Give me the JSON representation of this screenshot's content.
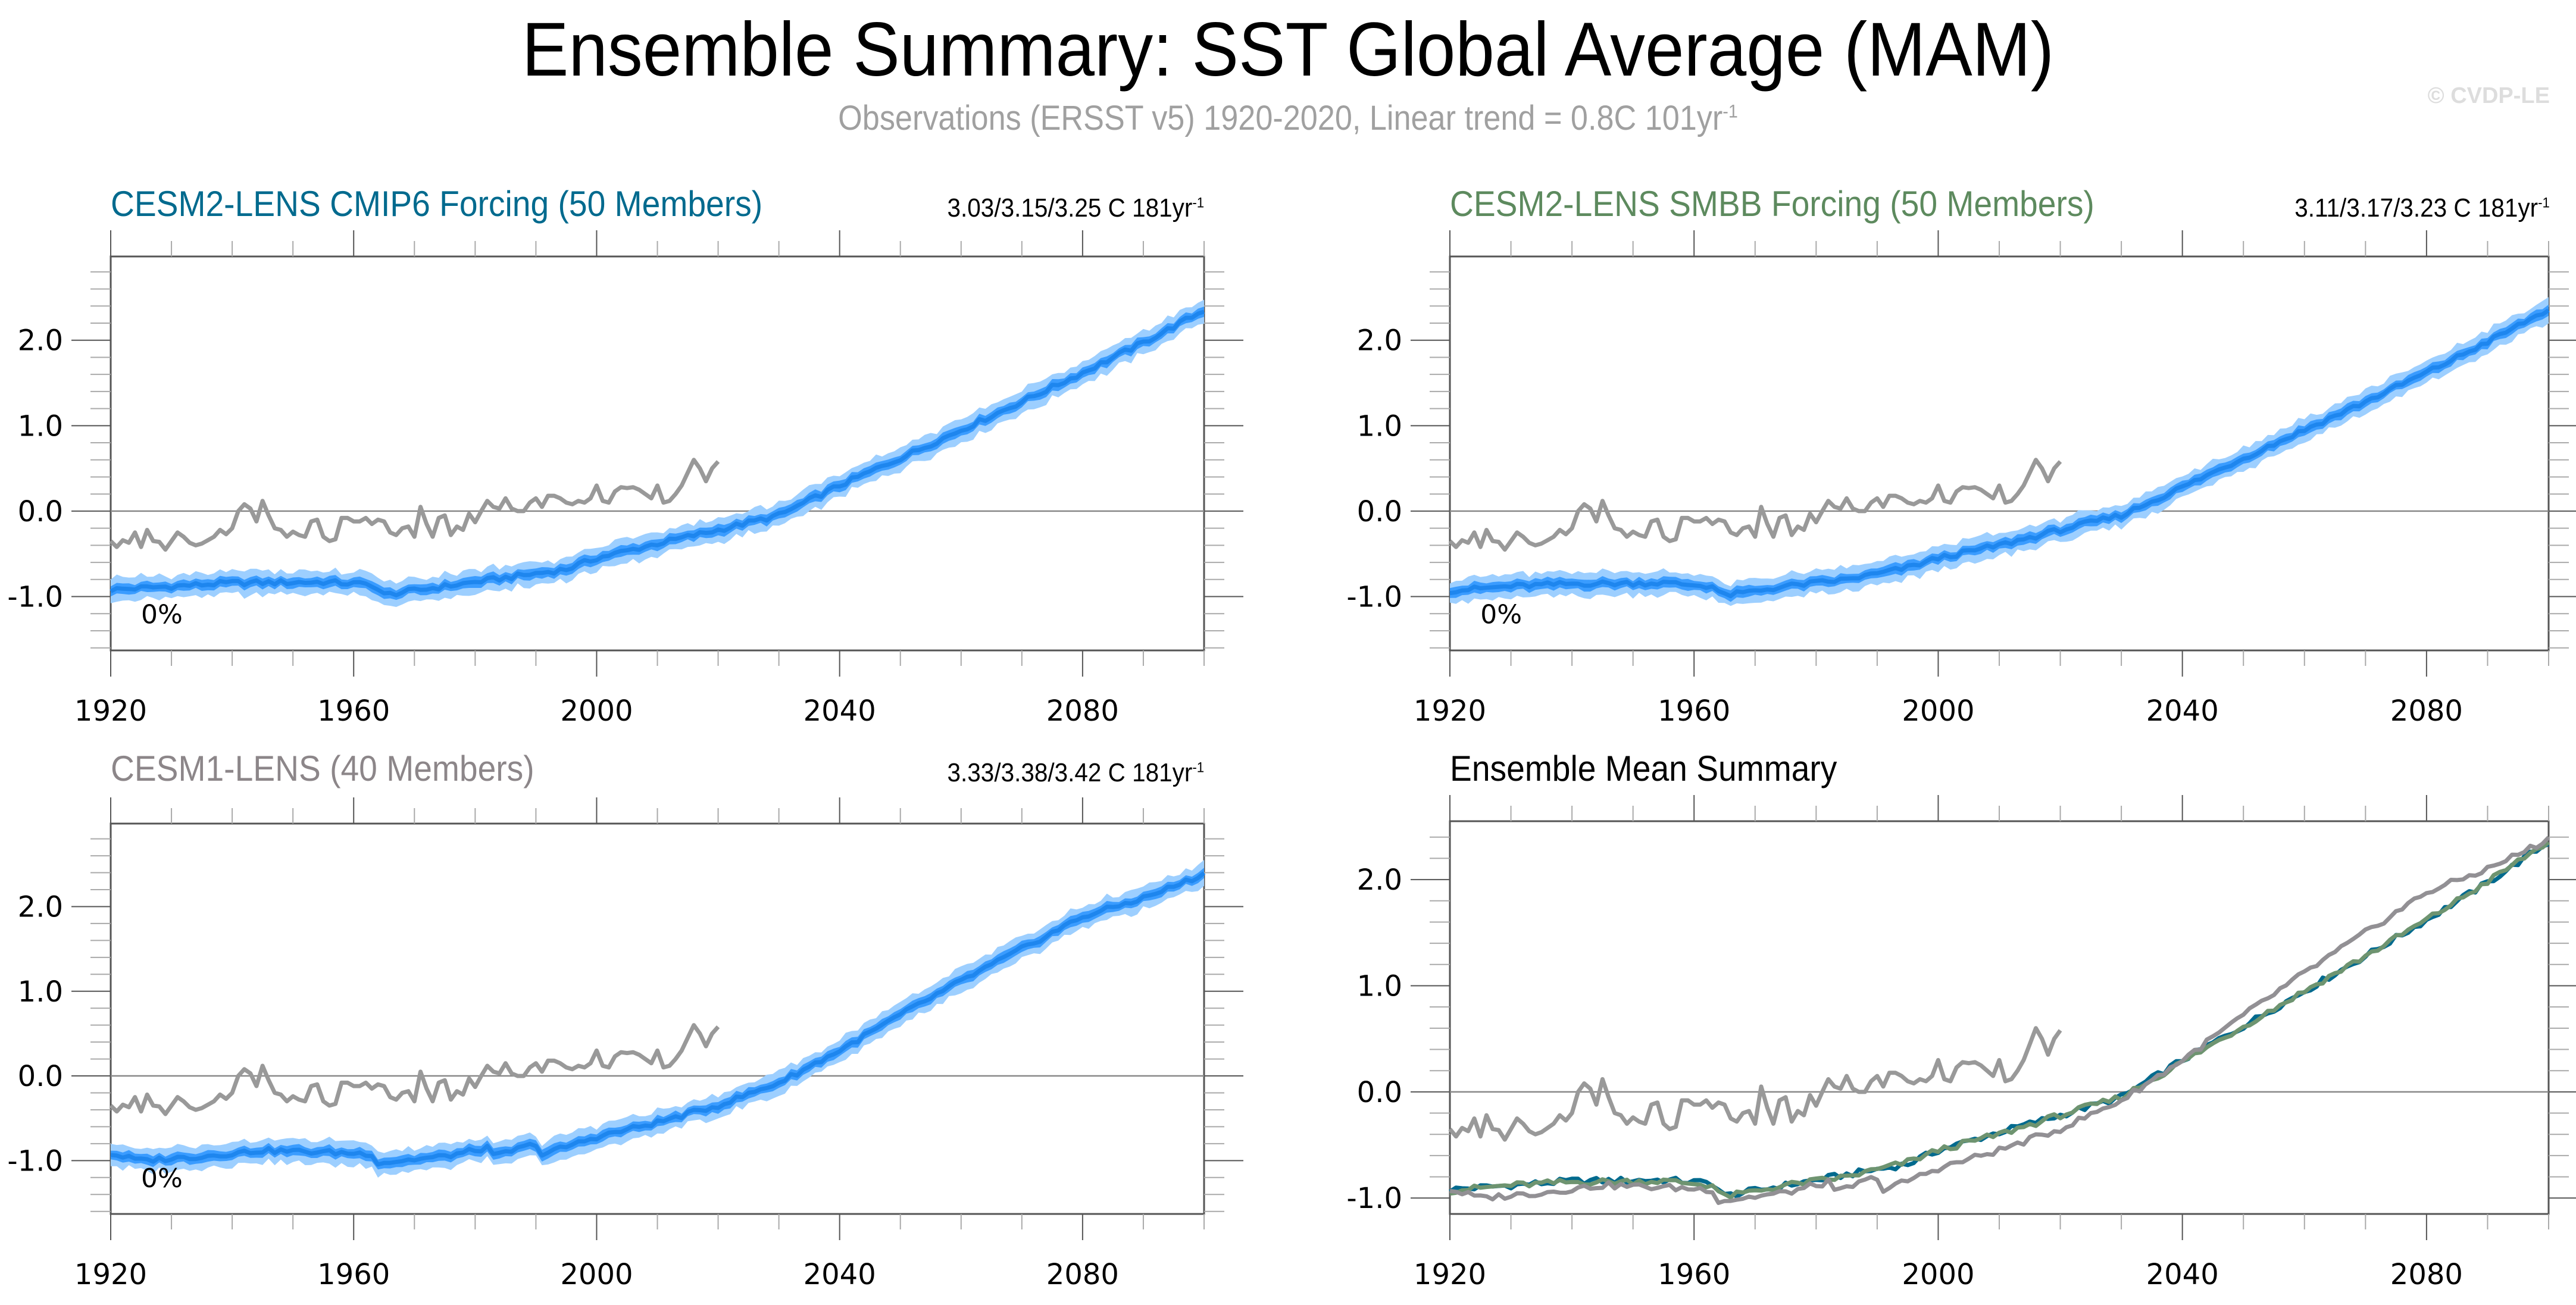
{
  "header": {
    "title": "Ensemble Summary: SST Global Average (MAM)",
    "subtitle": "Observations (ERSST v5) 1920-2020, Linear trend = 0.8C 101yr",
    "subtitle_sup": "-1",
    "copyright": "© CVDP-LE"
  },
  "colors": {
    "cmip6_title": "#006a8e",
    "smbb_title": "#5d8a5e",
    "cesm1_title": "#8c8689",
    "obs_line": "#999999",
    "band_outer": "#9dcfff",
    "band_inner": "#3a9cff",
    "mean_line": "#1e86ee",
    "em_cmip6": "#006a8e",
    "em_smbb": "#6e9470",
    "em_cesm1": "#929094"
  },
  "panels": [
    {
      "title": "CESM2-LENS CMIP6 Forcing (50 Members)",
      "stat": "3.03/3.15/3.25 C 181yr",
      "stat_sup": "-1",
      "pct": "0%"
    },
    {
      "title": "CESM2-LENS SMBB Forcing (50 Members)",
      "stat": "3.11/3.17/3.23 C 181yr",
      "stat_sup": "-1",
      "pct": "0%"
    },
    {
      "title": "CESM1-LENS (40 Members)",
      "stat": "3.33/3.38/3.42 C 181yr",
      "stat_sup": "-1",
      "pct": "0%"
    },
    {
      "title": "Ensemble Mean Summary"
    }
  ],
  "chart_data": [
    {
      "type": "area",
      "title": "CESM2-LENS CMIP6 Forcing (50 Members)",
      "x_range": [
        1920,
        2100
      ],
      "ylim": [
        -1.63,
        2.98
      ],
      "xticks": [
        "1920",
        "1960",
        "2000",
        "2040",
        "2080"
      ],
      "yticks": [
        "-1.0",
        "0.0",
        "1.0",
        "2.0"
      ],
      "zero_line": true,
      "annotation": "0%",
      "series": [
        {
          "name": "Ensemble mean",
          "anchors": [
            [
              1920,
              -0.92
            ],
            [
              1930,
              -0.88
            ],
            [
              1940,
              -0.84
            ],
            [
              1955,
              -0.83
            ],
            [
              1963,
              -0.86
            ],
            [
              1965,
              -0.98
            ],
            [
              1975,
              -0.88
            ],
            [
              1985,
              -0.78
            ],
            [
              1991,
              -0.72
            ],
            [
              1995,
              -0.68
            ],
            [
              2000,
              -0.55
            ],
            [
              2010,
              -0.38
            ],
            [
              2020,
              -0.22
            ],
            [
              2030,
              -0.05
            ],
            [
              2040,
              0.3
            ],
            [
              2050,
              0.62
            ],
            [
              2060,
              0.95
            ],
            [
              2070,
              1.28
            ],
            [
              2080,
              1.62
            ],
            [
              2090,
              1.97
            ],
            [
              2100,
              2.35
            ]
          ]
        },
        {
          "name": "Observations (ERSST v5)",
          "x_start": 1920,
          "values": [
            -0.35,
            -0.42,
            -0.34,
            -0.37,
            -0.25,
            -0.42,
            -0.22,
            -0.35,
            -0.36,
            -0.45,
            -0.35,
            -0.25,
            -0.3,
            -0.37,
            -0.4,
            -0.38,
            -0.34,
            -0.3,
            -0.22,
            -0.27,
            -0.2,
            0.0,
            0.08,
            0.03,
            -0.12,
            0.12,
            -0.05,
            -0.2,
            -0.22,
            -0.3,
            -0.24,
            -0.28,
            -0.3,
            -0.12,
            -0.1,
            -0.3,
            -0.35,
            -0.33,
            -0.08,
            -0.08,
            -0.12,
            -0.12,
            -0.08,
            -0.15,
            -0.1,
            -0.12,
            -0.25,
            -0.28,
            -0.2,
            -0.18,
            -0.3,
            0.05,
            -0.15,
            -0.3,
            -0.08,
            -0.05,
            -0.28,
            -0.18,
            -0.22,
            -0.03,
            -0.13,
            0.0,
            0.12,
            0.05,
            0.03,
            0.15,
            0.03,
            0.0,
            0.0,
            0.1,
            0.15,
            0.05,
            0.18,
            0.18,
            0.15,
            0.1,
            0.08,
            0.12,
            0.1,
            0.15,
            0.3,
            0.12,
            0.1,
            0.23,
            0.28,
            0.27,
            0.28,
            0.25,
            0.2,
            0.15,
            0.3,
            0.1,
            0.12,
            0.2,
            0.3,
            0.45,
            0.6,
            0.5,
            0.35,
            0.5,
            0.58
          ]
        }
      ],
      "bands": [
        "min-max",
        "interquartile"
      ]
    },
    {
      "type": "area",
      "title": "CESM2-LENS SMBB Forcing (50 Members)",
      "x_range": [
        1920,
        2100
      ],
      "ylim": [
        -1.63,
        2.98
      ],
      "xticks": [
        "1920",
        "1960",
        "2000",
        "2040",
        "2080"
      ],
      "yticks": [
        "-1.0",
        "0.0",
        "1.0",
        "2.0"
      ],
      "zero_line": true,
      "annotation": "0%",
      "series": [
        {
          "name": "Ensemble mean",
          "anchors": [
            [
              1920,
              -0.93
            ],
            [
              1930,
              -0.88
            ],
            [
              1940,
              -0.85
            ],
            [
              1955,
              -0.84
            ],
            [
              1963,
              -0.88
            ],
            [
              1965,
              -0.99
            ],
            [
              1975,
              -0.88
            ],
            [
              1985,
              -0.8
            ],
            [
              1991,
              -0.72
            ],
            [
              1995,
              -0.66
            ],
            [
              2000,
              -0.55
            ],
            [
              2010,
              -0.4
            ],
            [
              2020,
              -0.22
            ],
            [
              2030,
              -0.05
            ],
            [
              2040,
              0.28
            ],
            [
              2050,
              0.62
            ],
            [
              2060,
              0.95
            ],
            [
              2070,
              1.28
            ],
            [
              2080,
              1.62
            ],
            [
              2090,
              1.98
            ],
            [
              2100,
              2.36
            ]
          ]
        },
        {
          "name": "Observations (ERSST v5)",
          "x_start": 1920,
          "same_as": "panel 1"
        }
      ],
      "bands": [
        "min-max",
        "interquartile"
      ]
    },
    {
      "type": "area",
      "title": "CESM1-LENS (40 Members)",
      "x_range": [
        1920,
        2100
      ],
      "ylim": [
        -1.63,
        2.98
      ],
      "xticks": [
        "1920",
        "1960",
        "2000",
        "2040",
        "2080"
      ],
      "yticks": [
        "-1.0",
        "0.0",
        "1.0",
        "2.0"
      ],
      "zero_line": true,
      "annotation": "0%",
      "series": [
        {
          "name": "Ensemble mean",
          "anchors": [
            [
              1920,
              -0.92
            ],
            [
              1925,
              -1.0
            ],
            [
              1935,
              -0.95
            ],
            [
              1945,
              -0.88
            ],
            [
              1955,
              -0.9
            ],
            [
              1963,
              -0.92
            ],
            [
              1964,
              -1.03
            ],
            [
              1975,
              -0.95
            ],
            [
              1982,
              -0.85
            ],
            [
              1983,
              -0.95
            ],
            [
              1990,
              -0.8
            ],
            [
              1991,
              -0.93
            ],
            [
              2000,
              -0.72
            ],
            [
              2010,
              -0.55
            ],
            [
              2020,
              -0.35
            ],
            [
              2030,
              -0.08
            ],
            [
              2040,
              0.3
            ],
            [
              2050,
              0.72
            ],
            [
              2060,
              1.12
            ],
            [
              2070,
              1.5
            ],
            [
              2080,
              1.88
            ],
            [
              2090,
              2.1
            ],
            [
              2100,
              2.38
            ]
          ]
        },
        {
          "name": "Observations (ERSST v5)",
          "x_start": 1920,
          "same_as": "panel 1"
        }
      ],
      "bands": [
        "min-max",
        "interquartile"
      ]
    },
    {
      "type": "line",
      "title": "Ensemble Mean Summary",
      "x_range": [
        1920,
        2100
      ],
      "ylim": [
        -1.15,
        2.55
      ],
      "xticks": [
        "1920",
        "1960",
        "2000",
        "2040",
        "2080"
      ],
      "yticks": [
        "-1.0",
        "0.0",
        "1.0",
        "2.0"
      ],
      "zero_line": true,
      "series": [
        {
          "name": "CESM2-LENS CMIP6 Forcing",
          "ref": "panel 1 mean"
        },
        {
          "name": "CESM2-LENS SMBB Forcing",
          "ref": "panel 2 mean"
        },
        {
          "name": "CESM1-LENS",
          "ref": "panel 3 mean"
        },
        {
          "name": "Observations (ERSST v5)",
          "ref": "panel 1 obs"
        }
      ]
    }
  ]
}
